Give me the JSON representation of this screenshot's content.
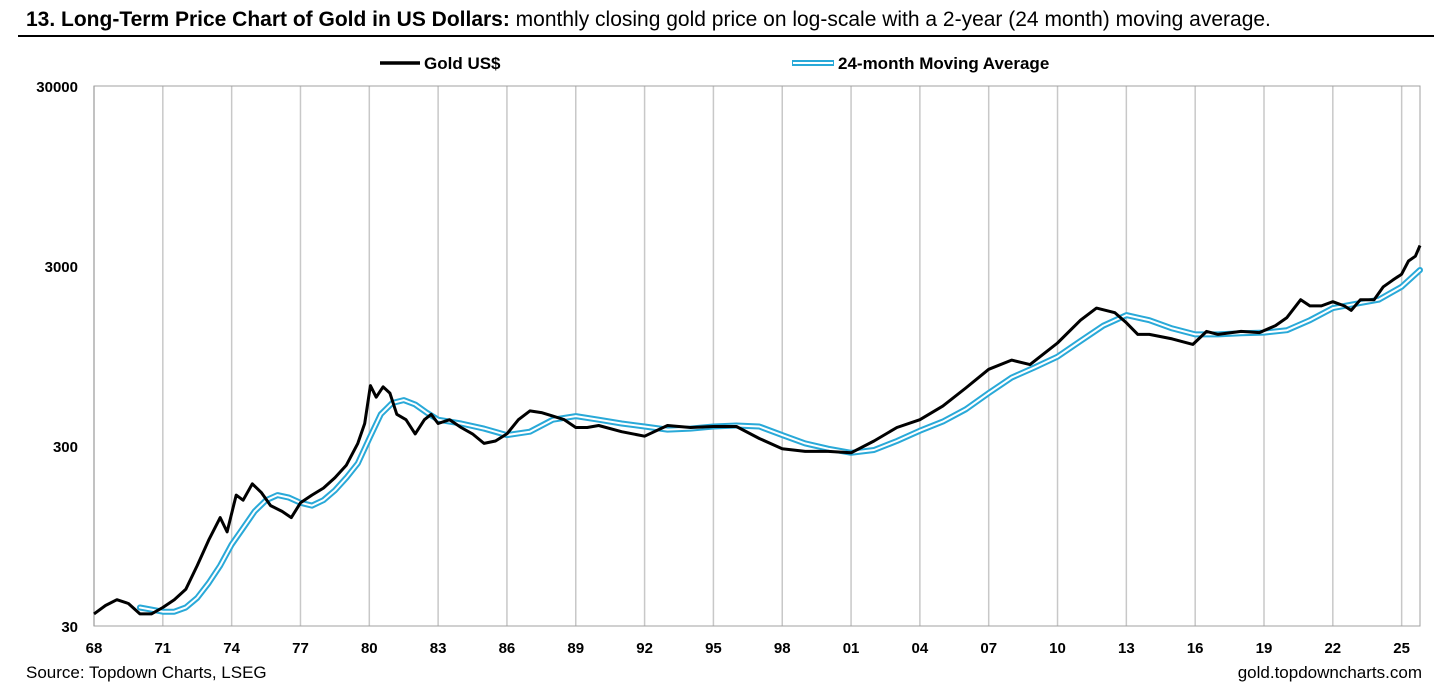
{
  "header": {
    "title_bold": "13. Long-Term Price Chart of Gold in US Dollars:",
    "title_rest": " monthly closing gold price on log-scale with a 2-year (24 month) moving average."
  },
  "footer": {
    "source": "Source: Topdown Charts, LSEG",
    "site": "gold.topdowncharts.com"
  },
  "colors": {
    "gold_line": "#000000",
    "ma_outline": "#29a9d8",
    "grid": "#c8c8c8"
  },
  "chart_data": {
    "type": "line",
    "title": "",
    "xlabel": "",
    "ylabel": "",
    "y_scale": "log",
    "ylim": [
      30,
      30000
    ],
    "y_ticks": [
      30,
      300,
      3000,
      30000
    ],
    "y_tick_labels": [
      "30",
      "300",
      "3000",
      "30000"
    ],
    "xlim": [
      1968,
      2025.8
    ],
    "x_ticks": [
      1968,
      1971,
      1974,
      1977,
      1980,
      1983,
      1986,
      1989,
      1992,
      1995,
      1998,
      2001,
      2004,
      2007,
      2010,
      2013,
      2016,
      2019,
      2022,
      2025
    ],
    "x_tick_labels": [
      "68",
      "71",
      "74",
      "77",
      "80",
      "83",
      "86",
      "89",
      "92",
      "95",
      "98",
      "01",
      "04",
      "07",
      "10",
      "13",
      "16",
      "19",
      "22",
      "25"
    ],
    "grid": "vertical",
    "legend_position": "top",
    "series": [
      {
        "name": "Gold US$",
        "style": "black",
        "x": [
          1968.0,
          1968.5,
          1969.0,
          1969.5,
          1970.0,
          1970.5,
          1971.0,
          1971.5,
          1972.0,
          1972.5,
          1973.0,
          1973.5,
          1973.8,
          1974.2,
          1974.5,
          1974.9,
          1975.3,
          1975.7,
          1976.2,
          1976.6,
          1977.0,
          1977.5,
          1978.0,
          1978.5,
          1979.0,
          1979.5,
          1979.8,
          1980.05,
          1980.3,
          1980.6,
          1980.9,
          1981.2,
          1981.6,
          1982.0,
          1982.4,
          1982.7,
          1983.0,
          1983.5,
          1984.0,
          1984.5,
          1985.0,
          1985.5,
          1986.0,
          1986.5,
          1987.0,
          1987.5,
          1988.0,
          1988.5,
          1989.0,
          1989.5,
          1990.0,
          1991.0,
          1992.0,
          1993.0,
          1994.0,
          1995.0,
          1996.0,
          1997.0,
          1998.0,
          1999.0,
          2000.0,
          2001.0,
          2002.0,
          2003.0,
          2004.0,
          2005.0,
          2006.0,
          2007.0,
          2008.0,
          2008.8,
          2009.5,
          2010.0,
          2011.0,
          2011.7,
          2012.5,
          2013.0,
          2013.5,
          2014.0,
          2015.0,
          2015.9,
          2016.5,
          2017.0,
          2018.0,
          2018.8,
          2019.5,
          2020.0,
          2020.6,
          2021.0,
          2021.5,
          2022.0,
          2022.5,
          2022.8,
          2023.2,
          2023.8,
          2024.2,
          2024.6,
          2025.0,
          2025.3,
          2025.6,
          2025.8
        ],
        "y": [
          35,
          39,
          42,
          40,
          35,
          35,
          38,
          42,
          48,
          65,
          90,
          120,
          100,
          160,
          150,
          185,
          165,
          140,
          130,
          120,
          145,
          160,
          175,
          200,
          235,
          310,
          400,
          650,
          560,
          640,
          590,
          450,
          420,
          350,
          420,
          450,
          400,
          420,
          380,
          350,
          310,
          320,
          350,
          420,
          470,
          460,
          440,
          420,
          380,
          380,
          390,
          360,
          340,
          390,
          380,
          385,
          385,
          330,
          290,
          280,
          280,
          275,
          320,
          380,
          420,
          500,
          630,
          800,
          900,
          850,
          1000,
          1120,
          1500,
          1750,
          1650,
          1450,
          1250,
          1250,
          1180,
          1100,
          1300,
          1250,
          1300,
          1280,
          1400,
          1550,
          1950,
          1800,
          1800,
          1900,
          1800,
          1700,
          1950,
          1950,
          2300,
          2500,
          2700,
          3200,
          3400,
          3900
        ]
      },
      {
        "name": "24-month Moving Average",
        "style": "blue-outline",
        "x": [
          1970.0,
          1970.5,
          1971.0,
          1971.5,
          1972.0,
          1972.5,
          1973.0,
          1973.5,
          1974.0,
          1974.5,
          1975.0,
          1975.5,
          1976.0,
          1976.5,
          1977.0,
          1977.5,
          1978.0,
          1978.5,
          1979.0,
          1979.5,
          1980.0,
          1980.5,
          1981.0,
          1981.5,
          1982.0,
          1982.5,
          1983.0,
          1984.0,
          1985.0,
          1986.0,
          1987.0,
          1988.0,
          1989.0,
          1990.0,
          1991.0,
          1992.0,
          1993.0,
          1994.0,
          1995.0,
          1996.0,
          1997.0,
          1998.0,
          1999.0,
          2000.0,
          2001.0,
          2002.0,
          2003.0,
          2004.0,
          2005.0,
          2006.0,
          2007.0,
          2008.0,
          2009.0,
          2010.0,
          2011.0,
          2012.0,
          2013.0,
          2014.0,
          2015.0,
          2016.0,
          2017.0,
          2018.0,
          2019.0,
          2020.0,
          2021.0,
          2022.0,
          2023.0,
          2024.0,
          2025.0,
          2025.8
        ],
        "y": [
          38,
          37,
          36,
          36,
          38,
          43,
          52,
          65,
          85,
          105,
          130,
          150,
          160,
          155,
          145,
          140,
          150,
          170,
          200,
          240,
          330,
          450,
          520,
          540,
          510,
          460,
          420,
          400,
          375,
          345,
          360,
          420,
          440,
          420,
          400,
          385,
          370,
          375,
          385,
          390,
          385,
          345,
          310,
          290,
          275,
          285,
          320,
          365,
          410,
          480,
          590,
          720,
          820,
          940,
          1150,
          1400,
          1600,
          1500,
          1350,
          1250,
          1250,
          1270,
          1280,
          1320,
          1500,
          1750,
          1850,
          1950,
          2300,
          2850
        ]
      }
    ]
  }
}
